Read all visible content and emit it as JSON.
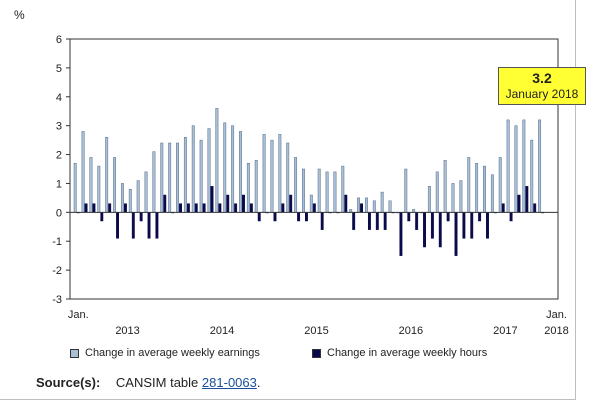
{
  "chart_data": {
    "type": "bar",
    "ylabel": "%",
    "ylim": [
      -3,
      6
    ],
    "yticks": [
      6,
      5,
      4,
      3,
      2,
      1,
      0,
      -1,
      -2,
      -3
    ],
    "grid": false,
    "legend_position": "bottom",
    "x_start_label": "Jan.",
    "x_end_label": "Jan.",
    "year_labels": [
      "2013",
      "2014",
      "2015",
      "2016",
      "2017",
      "2018"
    ],
    "months": [
      "2012-12",
      "2013-01",
      "2013-02",
      "2013-03",
      "2013-04",
      "2013-05",
      "2013-06",
      "2013-07",
      "2013-08",
      "2013-09",
      "2013-10",
      "2013-11",
      "2013-12",
      "2014-01",
      "2014-02",
      "2014-03",
      "2014-04",
      "2014-05",
      "2014-06",
      "2014-07",
      "2014-08",
      "2014-09",
      "2014-10",
      "2014-11",
      "2014-12",
      "2015-01",
      "2015-02",
      "2015-03",
      "2015-04",
      "2015-05",
      "2015-06",
      "2015-07",
      "2015-08",
      "2015-09",
      "2015-10",
      "2015-11",
      "2015-12",
      "2016-01",
      "2016-02",
      "2016-03",
      "2016-04",
      "2016-05",
      "2016-06",
      "2016-07",
      "2016-08",
      "2016-09",
      "2016-10",
      "2016-11",
      "2016-12",
      "2017-01",
      "2017-02",
      "2017-03",
      "2017-04",
      "2017-05",
      "2017-06",
      "2017-07",
      "2017-08",
      "2017-09",
      "2017-10",
      "2017-11",
      "2017-12",
      "2018-01"
    ],
    "series": [
      {
        "name": "Change in average weekly earnings",
        "color": "#a9bfd6",
        "values": [
          1.7,
          2.8,
          1.9,
          1.6,
          2.6,
          1.9,
          1.0,
          0.8,
          1.1,
          1.4,
          2.1,
          2.4,
          2.4,
          2.4,
          2.6,
          3.0,
          2.5,
          2.9,
          3.6,
          3.1,
          3.0,
          2.8,
          1.7,
          1.8,
          2.7,
          2.5,
          2.7,
          2.4,
          1.9,
          1.5,
          0.6,
          1.5,
          1.4,
          1.4,
          1.6,
          0.1,
          0.5,
          0.5,
          0.4,
          0.7,
          0.4,
          0.0,
          1.5,
          0.1,
          0.0,
          0.9,
          1.4,
          1.8,
          1.0,
          1.1,
          1.9,
          1.7,
          1.6,
          1.3,
          1.9,
          3.2,
          3.0,
          3.2,
          2.5,
          3.2,
          null,
          null
        ]
      },
      {
        "name": "Change in average weekly hours",
        "color": "#0a0a4a",
        "values": [
          0.0,
          0.3,
          0.3,
          -0.3,
          0.3,
          -0.9,
          0.3,
          -0.9,
          -0.3,
          -0.9,
          -0.9,
          0.6,
          0.0,
          0.3,
          0.3,
          0.3,
          0.3,
          0.9,
          0.3,
          0.6,
          0.3,
          0.6,
          0.3,
          -0.3,
          0.0,
          -0.3,
          0.3,
          0.6,
          -0.3,
          -0.3,
          0.3,
          -0.6,
          0.0,
          0.0,
          0.6,
          -0.6,
          0.3,
          -0.6,
          -0.6,
          -0.6,
          0.0,
          -1.5,
          -0.3,
          -0.6,
          -1.2,
          -0.9,
          -1.2,
          -0.3,
          -1.5,
          -0.9,
          -0.9,
          -0.3,
          -0.9,
          0.0,
          0.3,
          -0.3,
          0.6,
          0.9,
          0.3,
          0.0,
          null,
          null
        ]
      }
    ]
  },
  "callout": {
    "value": "3.2",
    "date": "January 2018"
  },
  "source": {
    "label": "Source(s):",
    "text": "CANSIM table",
    "link": "281-0063",
    "trailing": "."
  }
}
